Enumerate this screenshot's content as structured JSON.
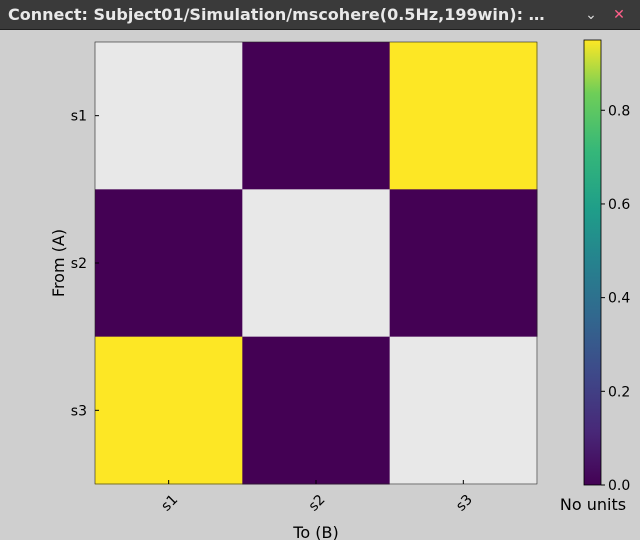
{
  "window": {
    "title": "Connect: Subject01/Simulation/mscohere(0.5Hz,199win): Simulat...",
    "minimize_glyph": "⌄",
    "close_glyph": "✕"
  },
  "icons": {
    "minimize": "chevron-down-icon",
    "close": "close-icon"
  },
  "chart_data": {
    "type": "heatmap",
    "row_labels": [
      "s1",
      "s2",
      "s3"
    ],
    "col_labels": [
      "s1",
      "s2",
      "s3"
    ],
    "ylabel": "From (A)",
    "xlabel": "To (B)",
    "values": [
      [
        null,
        0.0,
        0.95
      ],
      [
        0.0,
        null,
        0.0
      ],
      [
        0.95,
        0.0,
        null
      ]
    ],
    "null_color": "#e8e8e8",
    "colormap": "viridis",
    "colorbar": {
      "min": 0.0,
      "max": 0.95,
      "ticks": [
        "0.0",
        "0.2",
        "0.4",
        "0.6",
        "0.8"
      ],
      "tick_values": [
        0.0,
        0.2,
        0.4,
        0.6,
        0.8
      ],
      "unit_label": "No units"
    }
  }
}
